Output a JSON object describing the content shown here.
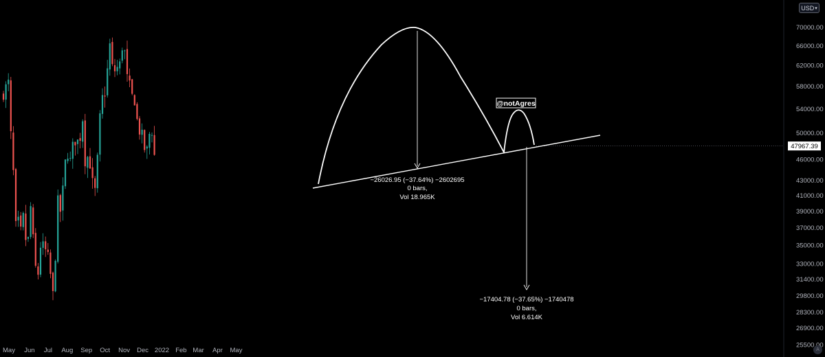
{
  "currency": {
    "label": "USD",
    "arrow": "▾"
  },
  "last_price": {
    "label": "47967.39"
  },
  "top_axis_partial": "7",
  "watermark": "@notAgres",
  "measurements": [
    {
      "line1": "−26026.95 (−37.64%) −2602695",
      "line2": "0 bars,",
      "line3": "Vol 18.965K"
    },
    {
      "line1": "−17404.78 (−37.65%) −1740478",
      "line2": "0 bars,",
      "line3": "Vol 6.614K"
    }
  ],
  "settings_icon": "A",
  "colors": {
    "up": "#26a69a",
    "down": "#ef5350",
    "background": "#000000",
    "drawing": "#ffffff"
  },
  "chart_data": {
    "type": "candlestick",
    "x_labels": [
      "May",
      "Jun",
      "Jul",
      "Aug",
      "Sep",
      "Oct",
      "Nov",
      "Dec",
      "2022",
      "Feb",
      "Mar",
      "Apr",
      "May"
    ],
    "y_ticks": [
      "70000.00",
      "66000.00",
      "62000.00",
      "58000.00",
      "54000.00",
      "50000.00",
      "46000.00",
      "43000.00",
      "41000.00",
      "39000.00",
      "37000.00",
      "35000.00",
      "33000.00",
      "31400.00",
      "29800.00",
      "28300.00",
      "26900.00",
      "25500.00",
      "24300.00"
    ],
    "y_axis_scale": "log",
    "last_price": 47967.39,
    "close_anchors": [
      [
        "2021-05-01",
        57000
      ],
      [
        "2021-05-04",
        57500
      ],
      [
        "2021-05-09",
        58500
      ],
      [
        "2021-05-12",
        50000
      ],
      [
        "2021-05-13",
        49500
      ],
      [
        "2021-05-17",
        44000
      ],
      [
        "2021-05-19",
        37500
      ],
      [
        "2021-05-21",
        37000
      ],
      [
        "2021-05-23",
        34500
      ],
      [
        "2021-05-26",
        39000
      ],
      [
        "2021-05-30",
        35500
      ],
      [
        "2021-06-03",
        39000
      ],
      [
        "2021-06-08",
        33500
      ],
      [
        "2021-06-12",
        37500
      ],
      [
        "2021-06-15",
        40500
      ],
      [
        "2021-06-18",
        35500
      ],
      [
        "2021-06-22",
        32500
      ],
      [
        "2021-06-26",
        32000
      ],
      [
        "2021-06-30",
        35000
      ],
      [
        "2021-07-07",
        34500
      ],
      [
        "2021-07-12",
        33500
      ],
      [
        "2021-07-16",
        31800
      ],
      [
        "2021-07-20",
        29800
      ],
      [
        "2021-07-24",
        34000
      ],
      [
        "2021-07-28",
        40000
      ],
      [
        "2021-08-03",
        38500
      ],
      [
        "2021-08-07",
        44500
      ],
      [
        "2021-08-14",
        47500
      ],
      [
        "2021-08-18",
        45000
      ],
      [
        "2021-08-23",
        49500
      ],
      [
        "2021-08-27",
        48500
      ],
      [
        "2021-09-01",
        48800
      ],
      [
        "2021-09-06",
        52500
      ],
      [
        "2021-09-07",
        46500
      ],
      [
        "2021-09-13",
        45500
      ],
      [
        "2021-09-16",
        48000
      ],
      [
        "2021-09-20",
        43000
      ],
      [
        "2021-09-22",
        42500
      ],
      [
        "2021-09-25",
        41500
      ],
      [
        "2021-09-28",
        41300
      ],
      [
        "2021-10-01",
        48000
      ],
      [
        "2021-10-06",
        55000
      ],
      [
        "2021-10-10",
        56500
      ],
      [
        "2021-10-14",
        57500
      ],
      [
        "2021-10-16",
        61000
      ],
      [
        "2021-10-20",
        66000
      ],
      [
        "2021-10-23",
        61500
      ],
      [
        "2021-10-28",
        61000
      ],
      [
        "2021-11-01",
        61500
      ],
      [
        "2021-11-05",
        62000
      ],
      [
        "2021-11-08",
        67000
      ],
      [
        "2021-11-10",
        65000
      ],
      [
        "2021-11-13",
        64500
      ],
      [
        "2021-11-16",
        60000
      ],
      [
        "2021-11-19",
        58000
      ],
      [
        "2021-11-23",
        57500
      ],
      [
        "2021-11-27",
        54500
      ],
      [
        "2021-12-01",
        57000
      ],
      [
        "2021-12-04",
        49500
      ],
      [
        "2021-12-07",
        50500
      ],
      [
        "2021-12-12",
        49000
      ],
      [
        "2021-12-14",
        48000
      ],
      [
        "2021-12-17",
        46800
      ],
      [
        "2021-12-21",
        47500
      ],
      [
        "2021-12-24",
        51000
      ],
      [
        "2021-12-27",
        50500
      ],
      [
        "2021-12-29",
        47500
      ],
      [
        "2021-12-31",
        46500
      ],
      [
        "2022-01-02",
        47967
      ]
    ]
  }
}
